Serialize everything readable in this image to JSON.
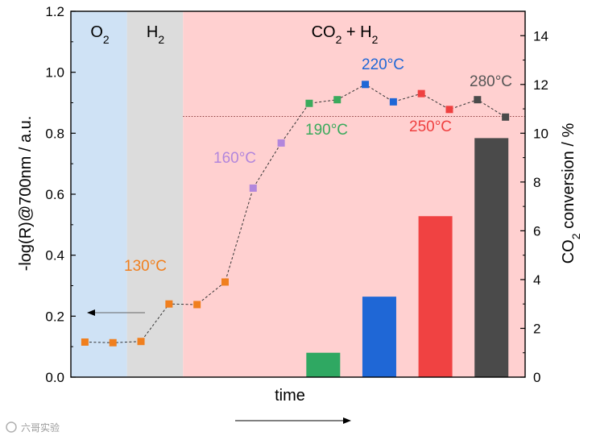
{
  "chart_data": {
    "type": "line",
    "xlabel": "time",
    "ylabel_left": "-log(R)@700nm / a.u.",
    "ylabel_right": "CO₂ conversion / %",
    "ylim_left": [
      0.0,
      1.2
    ],
    "ylim_right": [
      0,
      15
    ],
    "yticks_left": [
      "0.0",
      "0.2",
      "0.4",
      "0.6",
      "0.8",
      "1.0",
      "1.2"
    ],
    "yticks_right": [
      "0",
      "2",
      "4",
      "6",
      "8",
      "10",
      "12",
      "14"
    ],
    "regions": [
      {
        "label": "O₂",
        "x_start": 0,
        "x_end": 2,
        "color": "#cfe2f5"
      },
      {
        "label": "H₂",
        "x_start": 2,
        "x_end": 4,
        "color": "#dcdcdc"
      },
      {
        "label": "CO₂ + H₂",
        "x_start": 4,
        "x_end": 16.2,
        "color": "#ffd0d0"
      }
    ],
    "series": [
      {
        "values": [
          {
            "x": 0.5,
            "y": 0.115,
            "color": "#f07f1e"
          },
          {
            "x": 1.5,
            "y": 0.113,
            "color": "#f07f1e"
          },
          {
            "x": 2.5,
            "y": 0.117,
            "color": "#f07f1e"
          },
          {
            "x": 3.5,
            "y": 0.24,
            "color": "#f07f1e"
          },
          {
            "x": 4.5,
            "y": 0.238,
            "color": "#f07f1e"
          },
          {
            "x": 5.5,
            "y": 0.312,
            "color": "#f07f1e"
          },
          {
            "x": 6.5,
            "y": 0.62,
            "color": "#b286dc"
          },
          {
            "x": 7.5,
            "y": 0.768,
            "color": "#b286dc"
          },
          {
            "x": 8.5,
            "y": 0.898,
            "color": "#3aaa5c"
          },
          {
            "x": 9.5,
            "y": 0.91,
            "color": "#3aaa5c"
          },
          {
            "x": 10.5,
            "y": 0.96,
            "color": "#1f67d6"
          },
          {
            "x": 11.5,
            "y": 0.903,
            "color": "#1f67d6"
          },
          {
            "x": 12.5,
            "y": 0.93,
            "color": "#ef4040"
          },
          {
            "x": 13.5,
            "y": 0.878,
            "color": "#ef4040"
          },
          {
            "x": 14.5,
            "y": 0.91,
            "color": "#4a4a4a"
          },
          {
            "x": 15.5,
            "y": 0.853,
            "color": "#4a4a4a"
          }
        ]
      }
    ],
    "bars": [
      {
        "x": 9.0,
        "value": 1.0,
        "color": "#2fa862"
      },
      {
        "x": 11.0,
        "value": 3.3,
        "color": "#1f67d6"
      },
      {
        "x": 13.0,
        "value": 6.6,
        "color": "#f04242"
      },
      {
        "x": 15.0,
        "value": 9.8,
        "color": "#4a4a4a"
      }
    ],
    "reference_line_y": 0.855,
    "annotations": [
      {
        "text": "130°C",
        "color": "#f07f1e"
      },
      {
        "text": "160°C",
        "color": "#b286dc"
      },
      {
        "text": "190°C",
        "color": "#3aaa5c"
      },
      {
        "text": "220°C",
        "color": "#1f67d6"
      },
      {
        "text": "250°C",
        "color": "#ef4040"
      },
      {
        "text": "280°C",
        "color": "#555555"
      }
    ],
    "watermark": "六哥实验"
  }
}
